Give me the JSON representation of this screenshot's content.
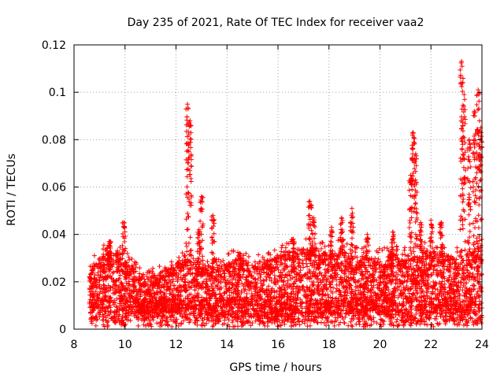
{
  "chart_data": {
    "type": "scatter",
    "title": "Day 235 of 2021, Rate Of TEC Index for receiver vaa2",
    "xlabel": "GPS time / hours",
    "ylabel": "ROTI / TECUs",
    "xlim": [
      8,
      24
    ],
    "ylim": [
      0,
      0.12
    ],
    "xticks": [
      8,
      10,
      12,
      14,
      16,
      18,
      20,
      22,
      24
    ],
    "yticks": [
      0,
      0.02,
      0.04,
      0.06,
      0.08,
      0.1,
      0.12
    ],
    "xtick_labels": [
      "8",
      "10",
      "12",
      "14",
      "16",
      "18",
      "20",
      "22",
      "24"
    ],
    "ytick_labels": [
      "0",
      "0.02",
      "0.04",
      "0.06",
      "0.08",
      "0.1",
      "0.12"
    ],
    "grid": true,
    "marker": "+",
    "marker_color": "#ff0000",
    "series": [
      {
        "name": "ROTI",
        "seed": 235,
        "bulk": {
          "count": 5400,
          "x_range": [
            8.6,
            24.0
          ],
          "y_floor": [
            0.002,
            0.008
          ],
          "y_envelope": [
            [
              8.6,
              0.024
            ],
            [
              9.0,
              0.03
            ],
            [
              9.5,
              0.033
            ],
            [
              10.0,
              0.03
            ],
            [
              10.5,
              0.024
            ],
            [
              11.0,
              0.022
            ],
            [
              11.5,
              0.025
            ],
            [
              12.0,
              0.028
            ],
            [
              12.5,
              0.03
            ],
            [
              13.0,
              0.028
            ],
            [
              13.5,
              0.026
            ],
            [
              14.0,
              0.028
            ],
            [
              14.5,
              0.03
            ],
            [
              15.0,
              0.027
            ],
            [
              15.5,
              0.029
            ],
            [
              16.0,
              0.031
            ],
            [
              16.5,
              0.033
            ],
            [
              17.0,
              0.034
            ],
            [
              17.5,
              0.033
            ],
            [
              18.0,
              0.032
            ],
            [
              18.5,
              0.033
            ],
            [
              19.0,
              0.031
            ],
            [
              19.5,
              0.03
            ],
            [
              20.0,
              0.03
            ],
            [
              20.5,
              0.031
            ],
            [
              21.0,
              0.03
            ],
            [
              21.5,
              0.031
            ],
            [
              22.0,
              0.033
            ],
            [
              22.5,
              0.032
            ],
            [
              23.0,
              0.031
            ],
            [
              23.5,
              0.034
            ],
            [
              24.0,
              0.036
            ]
          ]
        },
        "spikes": [
          {
            "x": 9.4,
            "y_max": 0.037
          },
          {
            "x": 9.95,
            "y_max": 0.045
          },
          {
            "x": 12.45,
            "y_max": 0.095
          },
          {
            "x": 12.55,
            "y_max": 0.088
          },
          {
            "x": 12.9,
            "y_max": 0.042
          },
          {
            "x": 13.0,
            "y_max": 0.056
          },
          {
            "x": 13.45,
            "y_max": 0.048
          },
          {
            "x": 14.5,
            "y_max": 0.032
          },
          {
            "x": 16.6,
            "y_max": 0.038
          },
          {
            "x": 17.25,
            "y_max": 0.054
          },
          {
            "x": 17.4,
            "y_max": 0.047
          },
          {
            "x": 18.1,
            "y_max": 0.043
          },
          {
            "x": 18.5,
            "y_max": 0.047
          },
          {
            "x": 18.9,
            "y_max": 0.051
          },
          {
            "x": 19.5,
            "y_max": 0.04
          },
          {
            "x": 20.5,
            "y_max": 0.041
          },
          {
            "x": 21.2,
            "y_max": 0.065
          },
          {
            "x": 21.3,
            "y_max": 0.083
          },
          {
            "x": 21.4,
            "y_max": 0.074
          },
          {
            "x": 21.6,
            "y_max": 0.045
          },
          {
            "x": 22.0,
            "y_max": 0.046
          },
          {
            "x": 22.4,
            "y_max": 0.045
          },
          {
            "x": 23.2,
            "y_max": 0.113
          },
          {
            "x": 23.3,
            "y_max": 0.099
          },
          {
            "x": 23.5,
            "y_max": 0.08
          },
          {
            "x": 23.7,
            "y_max": 0.092
          },
          {
            "x": 23.85,
            "y_max": 0.101
          },
          {
            "x": 23.95,
            "y_max": 0.085
          }
        ]
      }
    ]
  }
}
